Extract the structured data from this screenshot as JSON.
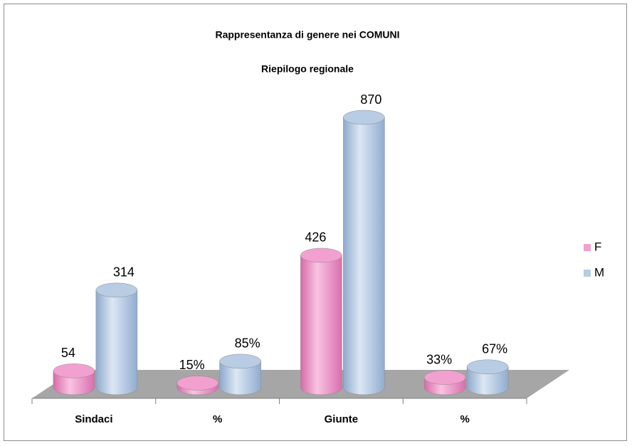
{
  "chart_data": {
    "type": "bar3d",
    "title": "Rappresentanza di genere nei COMUNI",
    "subtitle": "Riepilogo regionale",
    "categories": [
      "Sindaci",
      "%",
      "Giunte",
      "%"
    ],
    "series": [
      {
        "name": "F",
        "color": "#f2a0cf",
        "values": [
          54,
          15,
          426,
          33
        ],
        "value_labels": [
          "54",
          "15%",
          "426",
          "33%"
        ]
      },
      {
        "name": "M",
        "color": "#b8cce4",
        "values": [
          314,
          85,
          870,
          67
        ],
        "value_labels": [
          "314",
          "85%",
          "870",
          "67%"
        ]
      }
    ],
    "legend": "right"
  }
}
